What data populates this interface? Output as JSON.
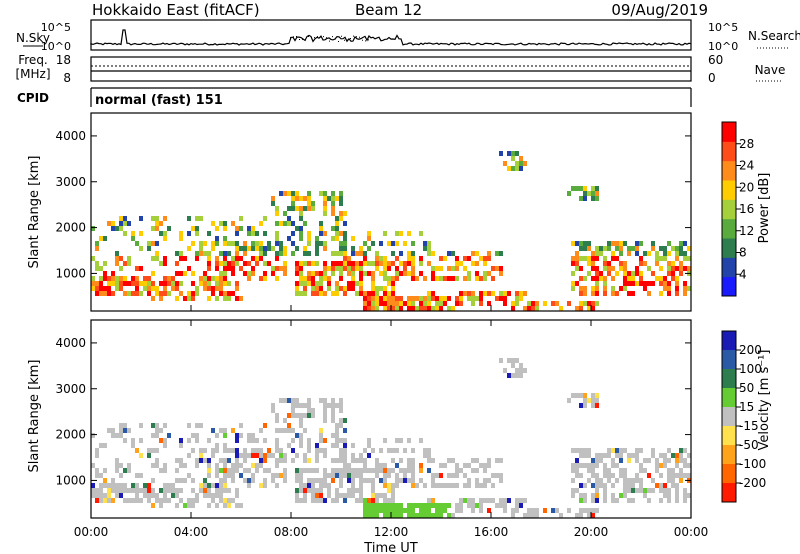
{
  "header": {
    "station": "Hokkaido East (fitACF)",
    "beam": "Beam 12",
    "date": "09/Aug/2019"
  },
  "noise_panel": {
    "left_label": "N.Sky",
    "right_label": "N.Search",
    "tick_top": "10^5",
    "tick_bottom": "10^0"
  },
  "freq_panel": {
    "left_label_1": "Freq.",
    "left_label_2": "[MHz]",
    "right_label": "Nave",
    "left_ticks": [
      "18",
      "8"
    ],
    "right_ticks": [
      "60",
      "0"
    ]
  },
  "cpid_panel": {
    "label": "CPID",
    "mode_text": "normal (fast) 151"
  },
  "chart_data": [
    {
      "type": "heatmap",
      "name": "Power",
      "ylabel": "Slant Range [km]",
      "y_ticks": [
        "1000",
        "2000",
        "3000",
        "4000"
      ],
      "ylim": [
        180,
        4500
      ],
      "colorbar": {
        "label": "Power [dB]",
        "range": [
          0,
          32
        ],
        "ticks": [
          "4",
          "8",
          "12",
          "16",
          "20",
          "24",
          "28"
        ],
        "colors": [
          "#1a1aff",
          "#2244aa",
          "#2e7d4f",
          "#59ab3d",
          "#a6cf3c",
          "#ffcc00",
          "#ff8c1a",
          "#ff4d1a",
          "#ff0000"
        ]
      }
    },
    {
      "type": "heatmap",
      "name": "Velocity",
      "ylabel": "Slant Range [km]",
      "y_ticks": [
        "1000",
        "2000",
        "3000",
        "4000"
      ],
      "ylim": [
        180,
        4500
      ],
      "colorbar": {
        "label": "Velocity [m s⁻¹]",
        "ticks": [
          "200",
          "100",
          "50",
          "15",
          "-15",
          "-50",
          "-100",
          "-200"
        ],
        "colors": [
          "#1a1ab5",
          "#2a5aa5",
          "#2e7d4f",
          "#66cc33",
          "#c0c0c0",
          "#ffe14d",
          "#ffa31a",
          "#ff6600",
          "#ff1a00"
        ]
      }
    }
  ],
  "x_axis": {
    "label": "Time UT",
    "ticks": [
      "00:00",
      "04:00",
      "08:00",
      "12:00",
      "16:00",
      "20:00",
      "00:00"
    ]
  }
}
